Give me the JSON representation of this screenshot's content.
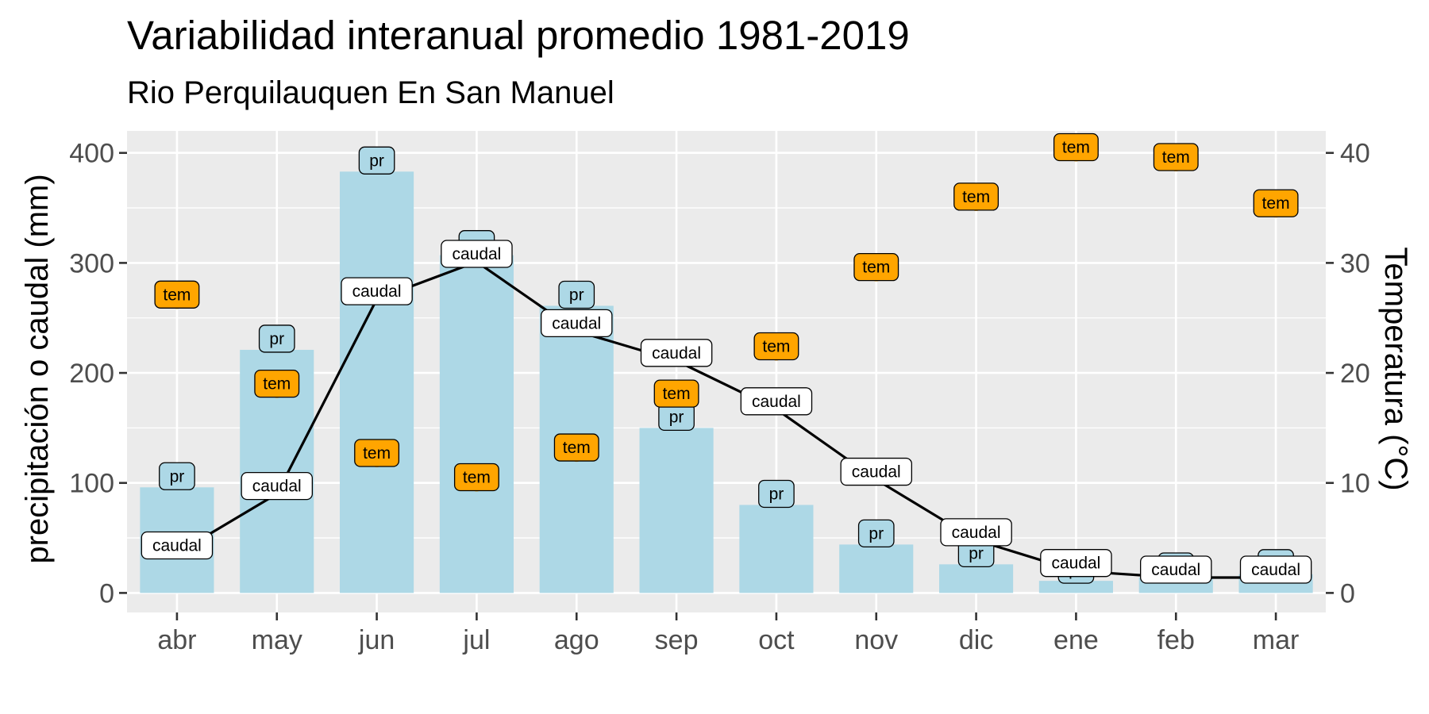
{
  "chart_data": {
    "type": "bar",
    "title": "Variabilidad interanual promedio 1981-2019",
    "subtitle": "Rio Perquilauquen En San Manuel",
    "ylabel": "precipitación o caudal (mm)",
    "ylabel_right": "Temperatura (°C)",
    "ylim": [
      0,
      420
    ],
    "ylim_right": [
      0,
      42
    ],
    "yticks": [
      "0",
      "100",
      "200",
      "300",
      "400"
    ],
    "yticks_right": [
      "0",
      "10",
      "20",
      "30",
      "40"
    ],
    "categories": [
      "abr",
      "may",
      "jun",
      "jul",
      "ago",
      "sep",
      "oct",
      "nov",
      "dic",
      "ene",
      "feb",
      "mar"
    ],
    "grid": true,
    "series": [
      {
        "name": "pr",
        "type": "bar",
        "color": "#add8e6",
        "values": [
          96,
          221,
          383,
          307,
          261,
          150,
          80,
          44,
          26,
          11,
          14,
          17
        ]
      },
      {
        "name": "caudal",
        "type": "line",
        "color": "#000000",
        "label_fill": "#ffffff",
        "values": [
          36,
          90,
          267,
          301,
          238,
          211,
          167,
          103,
          48,
          20,
          14,
          14
        ]
      },
      {
        "name": "tem",
        "type": "scatter",
        "axis": "right",
        "color": "#ffa500",
        "values": [
          26.4,
          18.3,
          12.0,
          9.8,
          12.5,
          17.4,
          21.7,
          28.9,
          35.3,
          39.8,
          38.9,
          34.7
        ]
      }
    ]
  }
}
